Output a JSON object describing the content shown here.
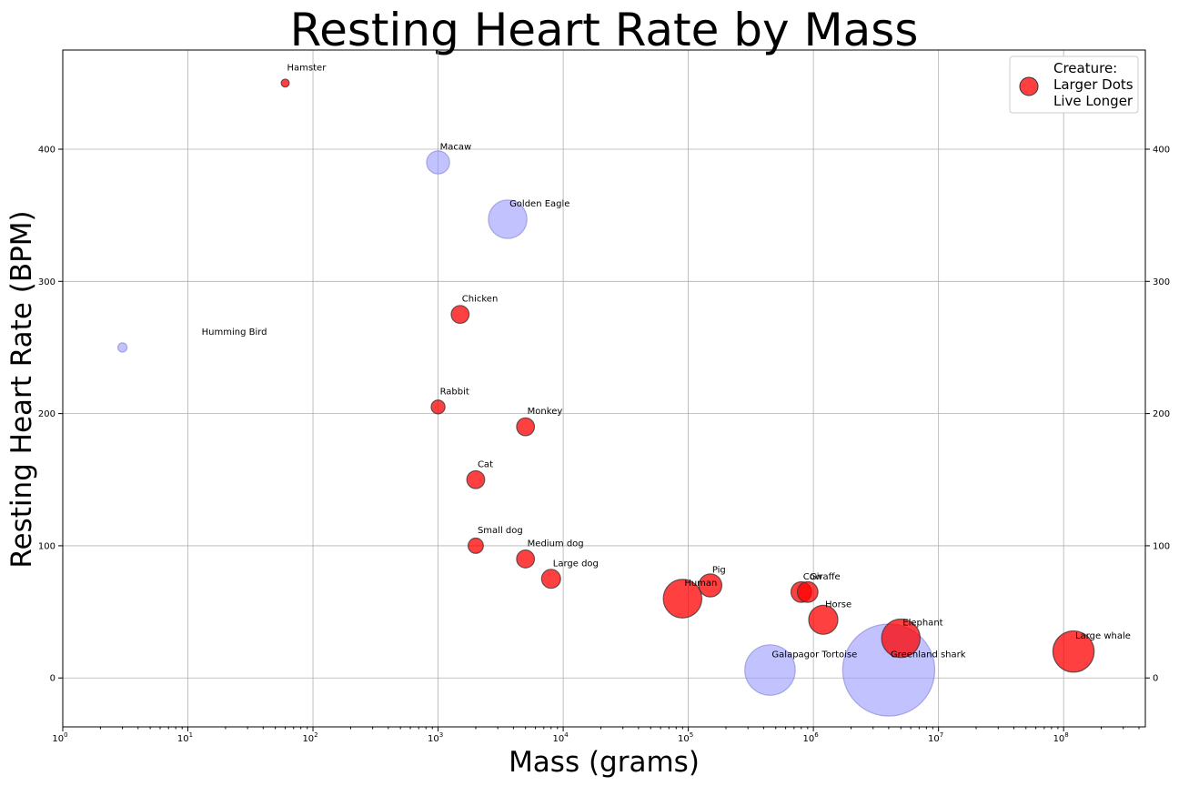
{
  "chart_data": {
    "type": "scatter",
    "title": "Resting Heart Rate by Mass",
    "xlabel": "Mass (grams)",
    "ylabel": "Resting Heart Rate (BPM)",
    "xscale": "log",
    "xlim": [
      1,
      450000000
    ],
    "ylim": [
      -37,
      475
    ],
    "x_ticks": [
      {
        "base": "10",
        "exp": "0",
        "value": 1
      },
      {
        "base": "10",
        "exp": "1",
        "value": 10
      },
      {
        "base": "10",
        "exp": "2",
        "value": 100
      },
      {
        "base": "10",
        "exp": "3",
        "value": 1000
      },
      {
        "base": "10",
        "exp": "4",
        "value": 10000
      },
      {
        "base": "10",
        "exp": "5",
        "value": 100000
      },
      {
        "base": "10",
        "exp": "6",
        "value": 1000000
      },
      {
        "base": "10",
        "exp": "7",
        "value": 10000000
      },
      {
        "base": "10",
        "exp": "8",
        "value": 100000000
      }
    ],
    "y_ticks": [
      0,
      100,
      200,
      300,
      400
    ],
    "grid": true,
    "legend": {
      "position": "top-right",
      "text": [
        "Creature:",
        "Larger Dots",
        "Live Longer"
      ],
      "color": "#ff0000"
    },
    "colors": {
      "mammal": "#ff0000",
      "other": "#9999ff"
    },
    "points": [
      {
        "label": "Hamster",
        "mass": 60,
        "bpm": 450,
        "lifespan": 3,
        "group": "mammal"
      },
      {
        "label": "Humming Bird",
        "mass": 3,
        "bpm": 250,
        "lifespan": 4,
        "group": "other"
      },
      {
        "label": "Macaw",
        "mass": 1000,
        "bpm": 390,
        "lifespan": 25,
        "group": "other"
      },
      {
        "label": "Golden Eagle",
        "mass": 3600,
        "bpm": 347,
        "lifespan": 70,
        "group": "other"
      },
      {
        "label": "Chicken",
        "mass": 1500,
        "bpm": 275,
        "lifespan": 15,
        "group": "mammal"
      },
      {
        "label": "Rabbit",
        "mass": 1000,
        "bpm": 205,
        "lifespan": 9,
        "group": "mammal"
      },
      {
        "label": "Monkey",
        "mass": 5000,
        "bpm": 190,
        "lifespan": 15,
        "group": "mammal"
      },
      {
        "label": "Cat",
        "mass": 2000,
        "bpm": 150,
        "lifespan": 15,
        "group": "mammal"
      },
      {
        "label": "Small dog",
        "mass": 2000,
        "bpm": 100,
        "lifespan": 11,
        "group": "mammal"
      },
      {
        "label": "Medium dog",
        "mass": 5000,
        "bpm": 90,
        "lifespan": 15,
        "group": "mammal"
      },
      {
        "label": "Large dog",
        "mass": 8000,
        "bpm": 75,
        "lifespan": 17,
        "group": "mammal"
      },
      {
        "label": "Human",
        "mass": 90000,
        "bpm": 60,
        "lifespan": 70,
        "group": "mammal"
      },
      {
        "label": "Pig",
        "mass": 150000,
        "bpm": 70,
        "lifespan": 25,
        "group": "mammal"
      },
      {
        "label": "Cow",
        "mass": 800000,
        "bpm": 65,
        "lifespan": 20,
        "group": "mammal"
      },
      {
        "label": "Giraffe",
        "mass": 900000,
        "bpm": 65,
        "lifespan": 20,
        "group": "mammal"
      },
      {
        "label": "Horse",
        "mass": 1200000,
        "bpm": 44,
        "lifespan": 40,
        "group": "mammal"
      },
      {
        "label": "Elephant",
        "mass": 5000000,
        "bpm": 30,
        "lifespan": 70,
        "group": "mammal"
      },
      {
        "label": "Large whale",
        "mass": 120000000,
        "bpm": 20,
        "lifespan": 80,
        "group": "mammal"
      },
      {
        "label": "Galapagor Tortoise",
        "mass": 450000,
        "bpm": 6,
        "lifespan": 120,
        "group": "other"
      },
      {
        "label": "Greenland shark",
        "mass": 4000000,
        "bpm": 6,
        "lifespan": 400,
        "group": "other"
      }
    ]
  }
}
